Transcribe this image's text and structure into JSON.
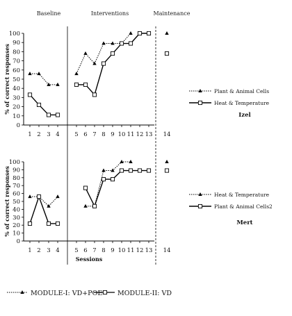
{
  "phases": [
    "Baseline",
    "Interventions",
    "Maintenance"
  ],
  "chart_data": [
    {
      "type": "line",
      "student": "Izel",
      "ylabel": "% of correct responses",
      "ylim": [
        0,
        100
      ],
      "yticks": [
        0,
        10,
        20,
        30,
        40,
        50,
        60,
        70,
        80,
        90,
        100
      ],
      "xticks": [
        1,
        2,
        3,
        4,
        5,
        6,
        7,
        8,
        9,
        10,
        11,
        12,
        13,
        14
      ],
      "series": [
        {
          "name": "Plant & Animal Cells",
          "style": "dotted-triangle",
          "segments": [
            [
              [
                1,
                56
              ],
              [
                2,
                56
              ],
              [
                3,
                44
              ],
              [
                4,
                44
              ]
            ],
            [
              [
                5,
                56
              ],
              [
                6,
                78
              ],
              [
                7,
                67
              ],
              [
                8,
                89
              ],
              [
                9,
                89
              ],
              [
                10,
                89
              ],
              [
                11,
                100
              ]
            ],
            [
              [
                14,
                100
              ]
            ]
          ]
        },
        {
          "name": "Heat & Temperature",
          "style": "solid-square",
          "segments": [
            [
              [
                1,
                33
              ],
              [
                2,
                22
              ],
              [
                3,
                11
              ],
              [
                4,
                11
              ]
            ],
            [
              [
                5,
                44
              ],
              [
                6,
                44
              ],
              [
                7,
                33
              ],
              [
                8,
                67
              ],
              [
                9,
                78
              ],
              [
                10,
                89
              ],
              [
                11,
                89
              ],
              [
                12,
                100
              ],
              [
                13,
                100
              ]
            ],
            [
              [
                14,
                78
              ]
            ]
          ]
        }
      ]
    },
    {
      "type": "line",
      "student": "Mert",
      "xlabel": "Sessions",
      "ylabel": "% of correct responses",
      "ylim": [
        0,
        100
      ],
      "yticks": [
        0,
        10,
        20,
        30,
        40,
        50,
        60,
        70,
        80,
        90,
        100
      ],
      "xticks": [
        1,
        2,
        3,
        4,
        5,
        6,
        7,
        8,
        9,
        10,
        11,
        12,
        13,
        14
      ],
      "series": [
        {
          "name": "Heat & Temperature",
          "style": "dotted-triangle",
          "segments": [
            [
              [
                1,
                56
              ],
              [
                2,
                56
              ],
              [
                3,
                44
              ],
              [
                4,
                56
              ]
            ],
            [
              [
                6,
                44
              ],
              [
                7,
                44
              ],
              [
                8,
                89
              ],
              [
                9,
                89
              ],
              [
                10,
                100
              ],
              [
                11,
                100
              ]
            ],
            [
              [
                14,
                100
              ]
            ]
          ]
        },
        {
          "name": "Plant & Animal Cells2",
          "style": "solid-square",
          "segments": [
            [
              [
                1,
                22
              ],
              [
                2,
                56
              ],
              [
                3,
                22
              ],
              [
                4,
                22
              ]
            ],
            [
              [
                6,
                67
              ],
              [
                7,
                44
              ],
              [
                8,
                78
              ],
              [
                9,
                78
              ],
              [
                10,
                89
              ],
              [
                11,
                89
              ],
              [
                12,
                89
              ],
              [
                13,
                89
              ]
            ],
            [
              [
                14,
                89
              ]
            ]
          ]
        }
      ]
    }
  ],
  "bottom_legend": [
    {
      "label": "MODULE-I: VD+POE",
      "style": "dotted-triangle"
    },
    {
      "label": "MODULE-II: VD",
      "style": "solid-square"
    }
  ]
}
